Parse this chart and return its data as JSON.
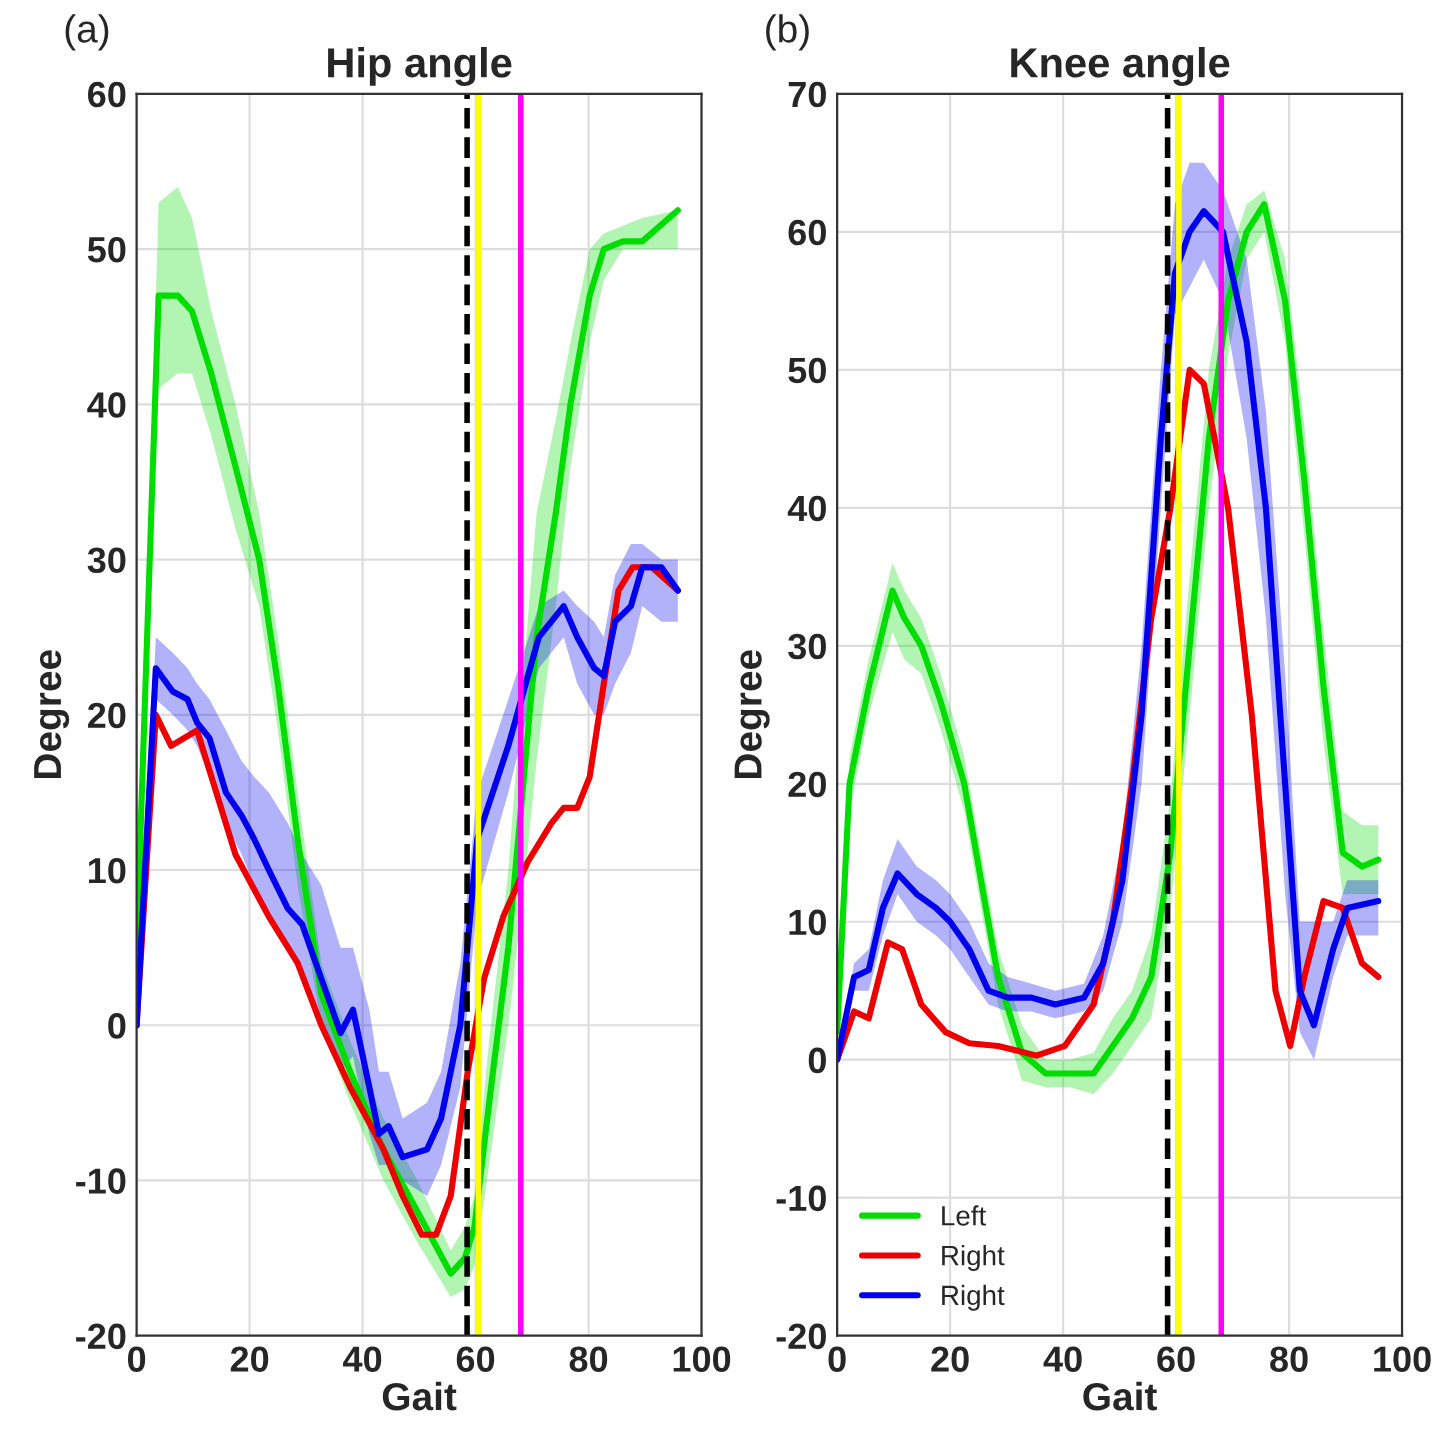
{
  "chart_data": [
    {
      "type": "line",
      "title": "Hip angle",
      "xlabel": "Gait",
      "ylabel": "Degree",
      "annotations": [
        "(a)"
      ],
      "xlim": [
        0,
        100
      ],
      "xticks": [
        0,
        20,
        40,
        60,
        80,
        100
      ],
      "ylim": [
        -20,
        60
      ],
      "yticks": [
        -20,
        -10,
        0,
        10,
        20,
        30,
        40,
        50,
        60
      ],
      "grid": true,
      "legend": false,
      "line_style": "solid",
      "marker": "none",
      "ref_lines": [
        {
          "axis": "x",
          "value": 58.5,
          "color": "#000000",
          "line_style": "dashed"
        },
        {
          "axis": "x",
          "value": 60.5,
          "color": "#ffff00",
          "line_style": "solid"
        },
        {
          "axis": "x",
          "value": 68,
          "color": "#ff00ff",
          "line_style": "solid"
        }
      ],
      "series": [
        {
          "color": "#00dd00",
          "x": [
            0,
            3.9,
            7.3,
            9.8,
            13.2,
            17.5,
            21.7,
            25,
            28.5,
            32.7,
            37.8,
            43.7,
            49.7,
            55.6,
            58.1,
            59.8,
            62.4,
            65.8,
            68.3,
            70.8,
            74.2,
            76.8,
            80.2,
            82.7,
            86.1,
            89.5,
            95.8
          ],
          "values": [
            5,
            47,
            47,
            46,
            42,
            36,
            30,
            22,
            12,
            2,
            -3,
            -8,
            -12,
            -16,
            -15,
            -13,
            -5,
            5,
            15,
            25,
            33,
            40,
            47,
            50,
            50.5,
            50.5,
            52.5
          ],
          "lower": [
            5,
            41,
            42,
            42,
            38,
            32,
            27,
            19,
            9,
            0,
            -5,
            -10,
            -14,
            -17.5,
            -17,
            -15.5,
            -9,
            0,
            8,
            17,
            27,
            36,
            44,
            48,
            50,
            50,
            50
          ],
          "upper": [
            5,
            53,
            54,
            52,
            46,
            40,
            33,
            25,
            15,
            4,
            -1,
            -6,
            -10,
            -14.5,
            -13,
            -11,
            -1,
            10,
            22,
            33,
            39,
            44,
            50,
            51,
            51.5,
            52,
            52.5
          ]
        },
        {
          "color": "#ee0000",
          "x": [
            0,
            3.4,
            6.1,
            10.7,
            14.1,
            17.5,
            23.4,
            28.5,
            32.7,
            37.8,
            43.7,
            47.1,
            50.5,
            53,
            55.6,
            58.6,
            61.5,
            64.9,
            69.2,
            73.4,
            75.6,
            78,
            80.2,
            82.7,
            85.3,
            87.8,
            91.2,
            95.8
          ],
          "values": [
            0,
            20,
            18,
            19,
            15,
            11,
            7,
            4,
            0,
            -4,
            -8,
            -11,
            -13.5,
            -13.5,
            -11,
            -3,
            3,
            7,
            10.5,
            13,
            14,
            14,
            16,
            22,
            28,
            29.5,
            29.5,
            28
          ]
        },
        {
          "color": "#0000ee",
          "x": [
            0,
            3.4,
            6.4,
            9,
            10.7,
            12.9,
            15.8,
            18.6,
            20.8,
            23.4,
            26.8,
            29.3,
            32.7,
            36.1,
            38.3,
            41.2,
            42.9,
            44.6,
            47.1,
            51.4,
            53.9,
            57.3,
            60.3,
            65.8,
            71.2,
            75.6,
            78,
            81,
            82.7,
            84.7,
            87.5,
            89.5,
            92.9,
            95.8
          ],
          "values": [
            0,
            23,
            21.5,
            21,
            19.5,
            18.5,
            15,
            13.5,
            12,
            10,
            7.5,
            6.5,
            3,
            -0.5,
            1,
            -4,
            -7,
            -6.5,
            -8.5,
            -8,
            -6,
            0,
            12,
            18,
            25,
            27,
            25,
            23,
            22.5,
            26,
            27,
            29.5,
            29.5,
            28
          ],
          "lower": [
            0,
            21,
            20,
            19,
            18,
            16,
            13,
            11,
            9,
            7,
            5,
            3,
            0,
            -3,
            -2,
            -7,
            -9,
            -9,
            -10,
            -11,
            -9,
            -4,
            8,
            15,
            23,
            25,
            22,
            20,
            20,
            22,
            24,
            27,
            26,
            26
          ],
          "upper": [
            0,
            25,
            24,
            23,
            22,
            21,
            19,
            17,
            16,
            15,
            13,
            11,
            9,
            5,
            5,
            1,
            -3,
            -3,
            -6,
            -5,
            -3,
            4,
            15,
            21,
            27,
            28,
            27,
            26,
            25,
            29,
            31,
            31,
            30,
            30
          ]
        }
      ]
    },
    {
      "type": "line",
      "title": "Knee angle",
      "xlabel": "Gait",
      "ylabel": "Degree",
      "annotations": [
        "(b)"
      ],
      "xlim": [
        0,
        100
      ],
      "xticks": [
        0,
        20,
        40,
        60,
        80,
        100
      ],
      "ylim": [
        -20,
        70
      ],
      "yticks": [
        -20,
        -10,
        0,
        10,
        20,
        30,
        40,
        50,
        60,
        70
      ],
      "grid": true,
      "legend": "bottom left",
      "line_style": "solid",
      "marker": "none",
      "ref_lines": [
        {
          "axis": "x",
          "value": 58.5,
          "color": "#000000",
          "line_style": "dashed"
        },
        {
          "axis": "x",
          "value": 60.5,
          "color": "#ffff00",
          "line_style": "solid"
        },
        {
          "axis": "x",
          "value": 68,
          "color": "#ff00ff",
          "line_style": "solid"
        }
      ],
      "series": [
        {
          "name": "Left",
          "color": "#00dd00",
          "x": [
            0,
            2.2,
            5.6,
            9.8,
            11.9,
            14.9,
            18.3,
            22.5,
            25.9,
            28.5,
            32.7,
            36.9,
            41.2,
            45.4,
            48.8,
            52.2,
            55.6,
            59,
            62.4,
            65.8,
            69.2,
            72.5,
            75.6,
            79.3,
            82.7,
            86.1,
            89.5,
            92.9,
            95.8
          ],
          "values": [
            2,
            20,
            27,
            34,
            32,
            30,
            26,
            20,
            12,
            6,
            0.5,
            -1,
            -1,
            -1,
            1,
            3,
            6,
            15,
            30,
            45,
            55,
            60,
            62,
            55,
            42,
            27,
            15,
            14,
            14.5
          ],
          "lower": [
            2,
            18,
            25,
            31,
            29,
            28,
            24,
            18,
            10,
            4,
            -1.5,
            -2,
            -2,
            -2.5,
            -1,
            1,
            3,
            11,
            25,
            40,
            51,
            58,
            60,
            52,
            38,
            23,
            12,
            12,
            12
          ],
          "upper": [
            2,
            22,
            29,
            36,
            34,
            32,
            28,
            22,
            14,
            8,
            2.5,
            0,
            0,
            0.5,
            3,
            5,
            9,
            19,
            35,
            50,
            58,
            62,
            63,
            58,
            46,
            31,
            18,
            17,
            17
          ]
        },
        {
          "name": "Right",
          "color": "#ee0000",
          "x": [
            0,
            3,
            5.6,
            9,
            11.5,
            14.9,
            19.2,
            23.4,
            28.5,
            35.3,
            40.3,
            45.4,
            48.8,
            52.2,
            55.6,
            59,
            62.4,
            64.9,
            69.2,
            73.4,
            77.6,
            80.2,
            82.7,
            86.1,
            89.5,
            92.9,
            95.8
          ],
          "values": [
            0,
            3.5,
            3,
            8.5,
            8,
            4,
            2,
            1.2,
            1,
            0.3,
            1,
            4,
            10,
            20,
            32,
            40,
            50,
            49,
            40,
            25,
            5,
            1,
            6,
            11.5,
            11,
            7,
            6
          ]
        },
        {
          "name": "Right",
          "color": "#0000ee",
          "x": [
            0,
            3,
            5.6,
            8.1,
            10.7,
            14.1,
            17.5,
            20,
            23.4,
            26.8,
            30.2,
            34.4,
            38.6,
            43.7,
            47.1,
            50.5,
            53.9,
            57.3,
            59.8,
            62.4,
            64.9,
            68.3,
            72.5,
            75.9,
            79.3,
            81.9,
            84.4,
            87.8,
            90.3,
            95.8
          ],
          "values": [
            0,
            6,
            6.5,
            11,
            13.5,
            12,
            11,
            10,
            8,
            5,
            4.5,
            4.5,
            4,
            4.5,
            7,
            13,
            25,
            45,
            57,
            60,
            61.5,
            60,
            52,
            40,
            20,
            5,
            2.5,
            8,
            11,
            11.5
          ],
          "lower": [
            0,
            5,
            5,
            9,
            12,
            10,
            9,
            8,
            6,
            4,
            3.5,
            3.5,
            3,
            3.5,
            5,
            10,
            20,
            40,
            54,
            56,
            58,
            55,
            45,
            32,
            12,
            2,
            0,
            6,
            9,
            9
          ],
          "upper": [
            0,
            7,
            8,
            13,
            16,
            14,
            13,
            12,
            10,
            7,
            6,
            5.5,
            5,
            5.5,
            9,
            16,
            30,
            50,
            62,
            65,
            65,
            63,
            58,
            47,
            28,
            10,
            10,
            10,
            13,
            13
          ]
        }
      ]
    }
  ]
}
